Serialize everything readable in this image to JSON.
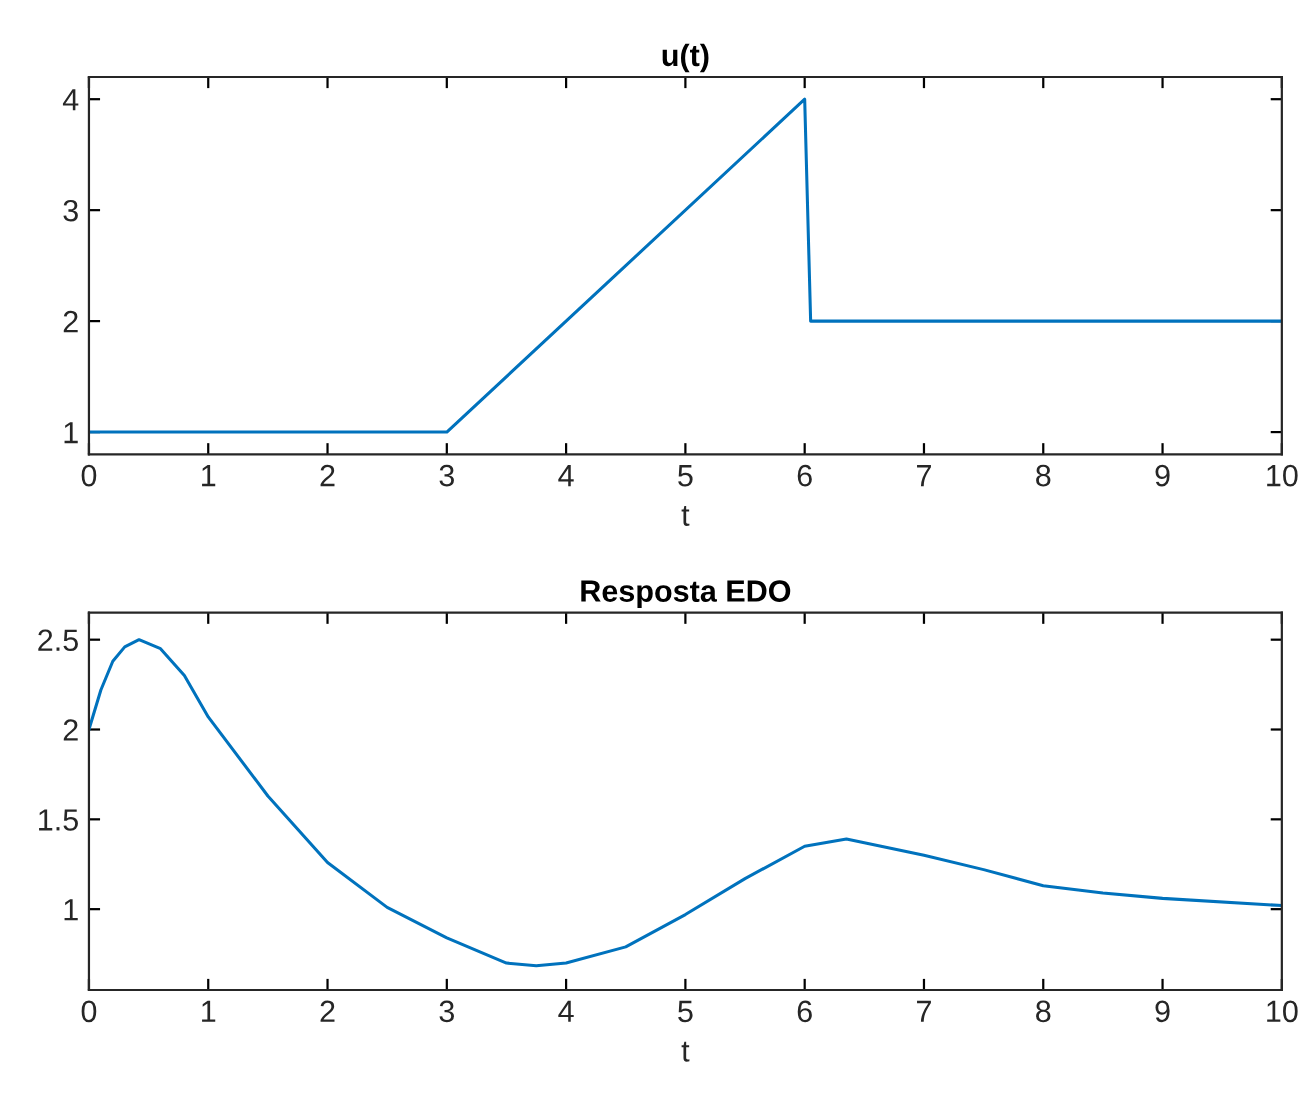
{
  "chart_data": [
    {
      "type": "line",
      "title": "u(t)",
      "xlabel": "t",
      "x": [
        0,
        3,
        6,
        6.05,
        10
      ],
      "series": [
        {
          "color": "#0072bd",
          "values": [
            1,
            1,
            4,
            2,
            2
          ]
        }
      ],
      "xlim": [
        0,
        10
      ],
      "xticks": [
        0,
        1,
        2,
        3,
        4,
        5,
        6,
        7,
        8,
        9,
        10
      ],
      "ylim": [
        0.8,
        4.2
      ],
      "yticks": [
        1,
        2,
        3,
        4
      ],
      "grid": false,
      "legend": false
    },
    {
      "type": "line",
      "title": "Resposta EDO",
      "xlabel": "t",
      "x": [
        0,
        0.1,
        0.2,
        0.3,
        0.42,
        0.6,
        0.8,
        1,
        1.5,
        2,
        2.5,
        3,
        3.5,
        3.75,
        4,
        4.5,
        5,
        5.5,
        6,
        6.35,
        7,
        7.5,
        8,
        8.5,
        9,
        10
      ],
      "series": [
        {
          "color": "#0072bd",
          "values": [
            2.0,
            2.22,
            2.38,
            2.46,
            2.5,
            2.45,
            2.3,
            2.07,
            1.63,
            1.26,
            1.01,
            0.84,
            0.7,
            0.685,
            0.7,
            0.79,
            0.97,
            1.17,
            1.35,
            1.39,
            1.3,
            1.22,
            1.13,
            1.09,
            1.06,
            1.02
          ]
        }
      ],
      "xlim": [
        0,
        10
      ],
      "xticks": [
        0,
        1,
        2,
        3,
        4,
        5,
        6,
        7,
        8,
        9,
        10
      ],
      "ylim": [
        0.55,
        2.65
      ],
      "yticks": [
        1,
        1.5,
        2,
        2.5
      ],
      "grid": false,
      "legend": false
    }
  ]
}
